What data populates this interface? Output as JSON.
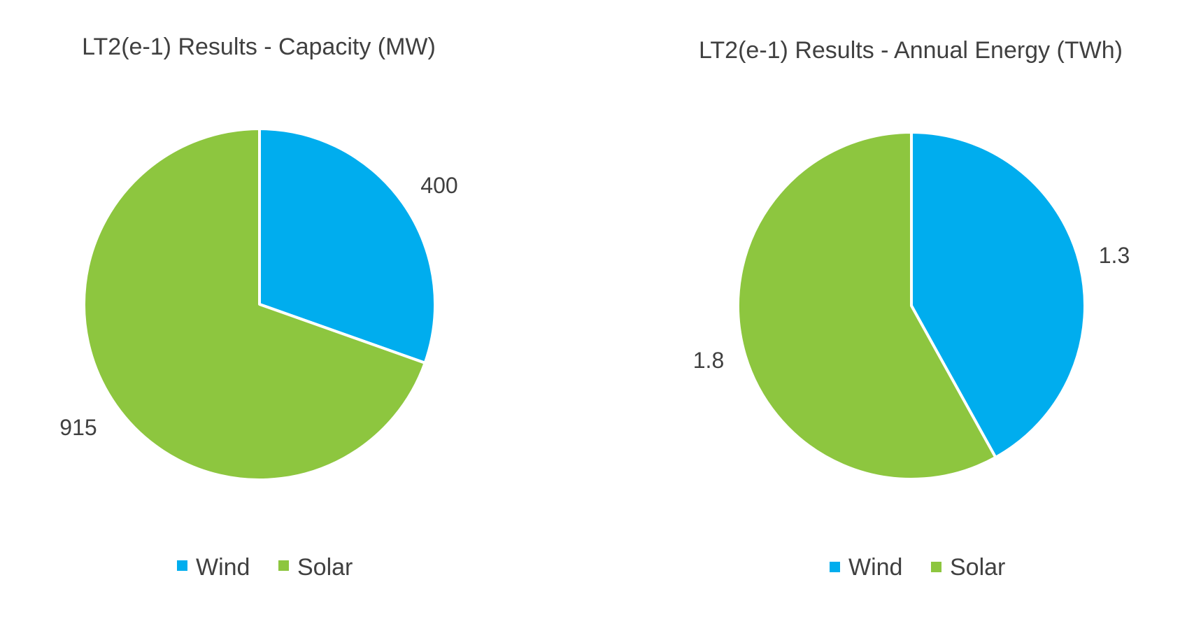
{
  "colors": {
    "wind": "#00ADEE",
    "solar": "#8DC63F",
    "text": "#404040"
  },
  "chart_data": [
    {
      "type": "pie",
      "title": "LT2(e-1) Results - Capacity (MW)",
      "categories": [
        "Wind",
        "Solar"
      ],
      "values": [
        400,
        915
      ],
      "labels": [
        "400",
        "915"
      ],
      "legend": [
        "Wind",
        "Solar"
      ],
      "legend_position": "bottom"
    },
    {
      "type": "pie",
      "title": "LT2(e-1) Results - Annual Energy (TWh)",
      "categories": [
        "Wind",
        "Solar"
      ],
      "values": [
        1.3,
        1.8
      ],
      "labels": [
        "1.3",
        "1.8"
      ],
      "legend": [
        "Wind",
        "Solar"
      ],
      "legend_position": "bottom"
    }
  ]
}
